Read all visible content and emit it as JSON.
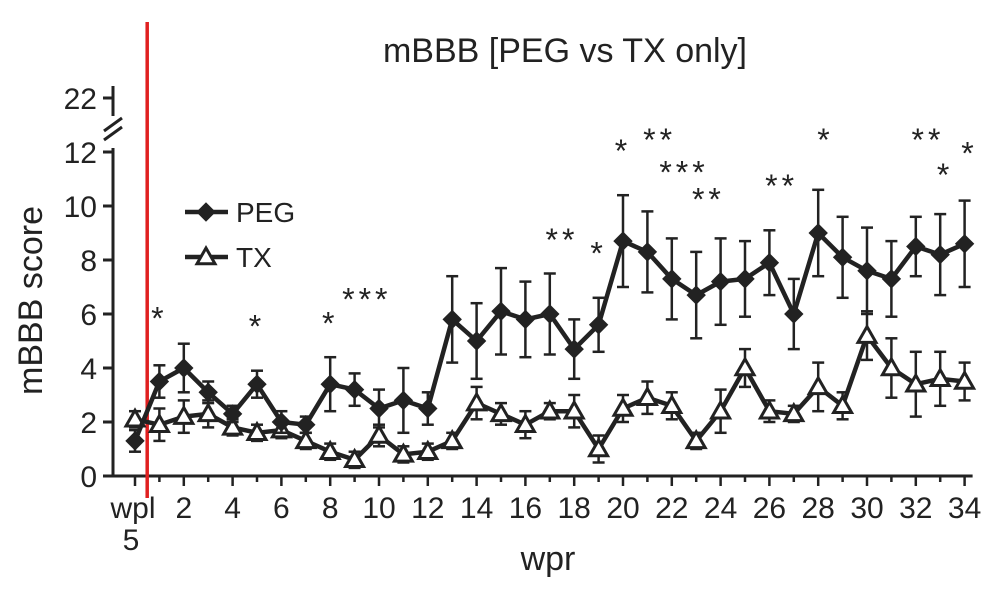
{
  "chart_data": {
    "type": "line",
    "title": "mBBB [PEG vs TX only]",
    "xlabel": "wpr",
    "ylabel": "mBBB score",
    "xlim": [
      0,
      34
    ],
    "ylim": [
      0,
      12
    ],
    "y_break_tick": 22,
    "ytick_labels": [
      "0",
      "2",
      "4",
      "6",
      "8",
      "10",
      "12"
    ],
    "xtick_labels": [
      {
        "x": 0,
        "label": "wpl"
      },
      {
        "x": 2,
        "label": "2"
      },
      {
        "x": 4,
        "label": "4"
      },
      {
        "x": 6,
        "label": "6"
      },
      {
        "x": 8,
        "label": "8"
      },
      {
        "x": 10,
        "label": "10"
      },
      {
        "x": 12,
        "label": "12"
      },
      {
        "x": 14,
        "label": "14"
      },
      {
        "x": 16,
        "label": "16"
      },
      {
        "x": 18,
        "label": "18"
      },
      {
        "x": 20,
        "label": "20"
      },
      {
        "x": 22,
        "label": "22"
      },
      {
        "x": 24,
        "label": "24"
      },
      {
        "x": 26,
        "label": "26"
      },
      {
        "x": 28,
        "label": "28"
      },
      {
        "x": 30,
        "label": "30"
      },
      {
        "x": 32,
        "label": "32"
      },
      {
        "x": 34,
        "label": "34"
      }
    ],
    "wpl_sub_label": "5",
    "injury_line_x": 0.5,
    "injury_line_color": "#e02020",
    "line_color": "#222222",
    "legend": [
      {
        "name": "PEG",
        "marker": "diamond-filled"
      },
      {
        "name": "TX",
        "marker": "triangle-open"
      }
    ],
    "series": [
      {
        "name": "PEG",
        "marker": "diamond-filled",
        "x": [
          0,
          1,
          2,
          3,
          4,
          5,
          6,
          7,
          8,
          9,
          10,
          11,
          12,
          13,
          14,
          15,
          16,
          17,
          18,
          19,
          20,
          21,
          22,
          23,
          24,
          25,
          26,
          27,
          28,
          29,
          30,
          31,
          32,
          33,
          34
        ],
        "y": [
          1.3,
          3.5,
          4.0,
          3.1,
          2.3,
          3.4,
          2.0,
          1.9,
          3.4,
          3.2,
          2.5,
          2.8,
          2.5,
          5.8,
          5.0,
          6.1,
          5.8,
          6.0,
          4.7,
          5.6,
          8.7,
          8.3,
          7.3,
          6.7,
          7.2,
          7.3,
          7.9,
          6.0,
          9.0,
          8.1,
          7.6,
          7.3,
          8.5,
          8.2,
          8.6
        ],
        "err": [
          0.4,
          0.6,
          0.9,
          0.4,
          0.3,
          0.5,
          0.4,
          0.3,
          1.0,
          0.6,
          0.7,
          1.2,
          0.6,
          1.6,
          1.4,
          1.6,
          1.4,
          1.5,
          1.1,
          1.0,
          1.7,
          1.5,
          1.5,
          1.6,
          1.6,
          1.4,
          1.2,
          1.3,
          1.6,
          1.5,
          1.6,
          1.4,
          1.1,
          1.5,
          1.6
        ]
      },
      {
        "name": "TX",
        "marker": "triangle-open",
        "x": [
          0,
          1,
          2,
          3,
          4,
          5,
          6,
          7,
          8,
          9,
          10,
          11,
          12,
          13,
          14,
          15,
          16,
          17,
          18,
          19,
          20,
          21,
          22,
          23,
          24,
          25,
          26,
          27,
          28,
          29,
          30,
          31,
          32,
          33,
          34
        ],
        "y": [
          2.1,
          1.9,
          2.2,
          2.3,
          1.8,
          1.6,
          1.7,
          1.3,
          0.9,
          0.6,
          1.5,
          0.8,
          0.9,
          1.3,
          2.7,
          2.3,
          1.9,
          2.4,
          2.4,
          1.0,
          2.5,
          2.9,
          2.6,
          1.3,
          2.4,
          4.0,
          2.4,
          2.3,
          3.3,
          2.6,
          5.2,
          4.0,
          3.4,
          3.6,
          3.5
        ],
        "err": [
          0.3,
          0.6,
          0.6,
          0.5,
          0.3,
          0.3,
          0.3,
          0.3,
          0.3,
          0.3,
          0.4,
          0.3,
          0.3,
          0.3,
          0.6,
          0.4,
          0.5,
          0.3,
          0.6,
          0.5,
          0.5,
          0.6,
          0.5,
          0.3,
          0.8,
          0.7,
          0.4,
          0.3,
          0.9,
          0.5,
          0.9,
          1.1,
          1.2,
          1.0,
          0.7
        ]
      }
    ],
    "annotations": [
      {
        "text": "*",
        "x": 1,
        "y": 6.1
      },
      {
        "text": "*",
        "x": 5,
        "y": 5.8
      },
      {
        "text": "*",
        "x": 8,
        "y": 5.9
      },
      {
        "text": "***",
        "x": 9.5,
        "y": 6.8
      },
      {
        "text": "**",
        "x": 17.5,
        "y": 9.0
      },
      {
        "text": "*",
        "x": 19,
        "y": 8.5
      },
      {
        "text": "*",
        "x": 20,
        "y": 12.3
      },
      {
        "text": "**",
        "x": 21.5,
        "y": 12.7
      },
      {
        "text": "***",
        "x": 22.5,
        "y": 11.5
      },
      {
        "text": "**",
        "x": 23.5,
        "y": 10.5
      },
      {
        "text": "**",
        "x": 26.5,
        "y": 11.0
      },
      {
        "text": "*",
        "x": 28.3,
        "y": 12.7
      },
      {
        "text": "**",
        "x": 32.5,
        "y": 12.7
      },
      {
        "text": "*",
        "x": 33.2,
        "y": 11.4
      },
      {
        "text": "*",
        "x": 34.2,
        "y": 12.2
      }
    ]
  }
}
